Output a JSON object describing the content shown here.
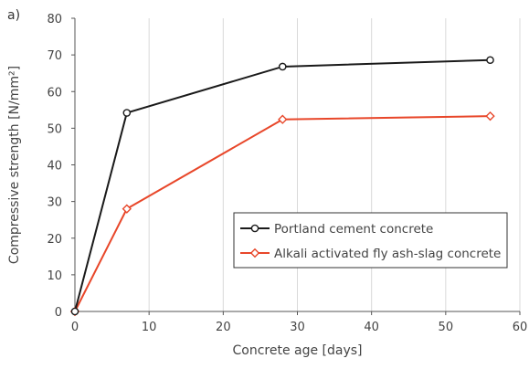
{
  "panel_label": "a)",
  "chart_data": {
    "type": "line",
    "xlabel": "Concrete age [days]",
    "ylabel": "Compressive strength [N/mm²]",
    "xlim": [
      0,
      60
    ],
    "ylim": [
      0,
      80
    ],
    "xticks": [
      0,
      10,
      20,
      30,
      40,
      50,
      60
    ],
    "yticks": [
      0,
      10,
      20,
      30,
      40,
      50,
      60,
      70,
      80
    ],
    "grid": "vertical",
    "legend_position": "lower-right",
    "series": [
      {
        "name": "Portland cement concrete",
        "color": "#1a1a1a",
        "marker": "circle",
        "x": [
          0,
          7,
          28,
          56
        ],
        "y": [
          0,
          54.2,
          66.8,
          68.6
        ]
      },
      {
        "name": "Alkali activated fly ash-slag concrete",
        "color": "#e8472a",
        "marker": "diamond",
        "x": [
          0,
          7,
          28,
          56
        ],
        "y": [
          0,
          28.0,
          52.4,
          53.3
        ]
      }
    ]
  }
}
